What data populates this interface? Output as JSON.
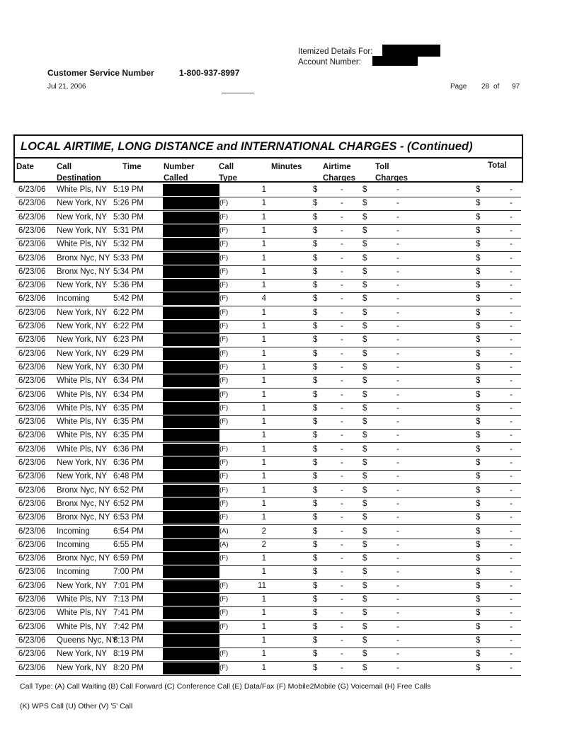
{
  "header": {
    "itemized_label": "Itemized Details For:",
    "account_label": "Account Number:",
    "customer_service_label": "Customer Service Number",
    "customer_service_number": "1-800-937-8997",
    "date": "Jul 21, 2006",
    "page_label": "Page",
    "page_current": "28",
    "page_of": "of",
    "page_total": "97"
  },
  "table": {
    "title": "LOCAL AIRTIME, LONG DISTANCE and INTERNATIONAL CHARGES  - (Continued)",
    "columns": [
      "Date",
      "Call\nDestination",
      "Time",
      "Number\nCalled",
      "Call\nType",
      "Minutes",
      "Airtime\nCharges",
      "Toll\nCharges",
      "Total"
    ],
    "currency": "$",
    "dash": "-",
    "rows": [
      [
        "6/23/06",
        "White Pls, NY",
        "5:19 PM",
        "",
        "1"
      ],
      [
        "6/23/06",
        "New York, NY",
        "5:26 PM",
        "(F)",
        "1"
      ],
      [
        "6/23/06",
        "New York, NY",
        "5:30 PM",
        "(F)",
        "1"
      ],
      [
        "6/23/06",
        "New York, NY",
        "5:31 PM",
        "(F)",
        "1"
      ],
      [
        "6/23/06",
        "White Pls, NY",
        "5:32 PM",
        "(F)",
        "1"
      ],
      [
        "6/23/06",
        "Bronx Nyc, NY",
        "5:33 PM",
        "(F)",
        "1"
      ],
      [
        "6/23/06",
        "Bronx Nyc, NY",
        "5:34 PM",
        "(F)",
        "1"
      ],
      [
        "6/23/06",
        "New York, NY",
        "5:36 PM",
        "(F)",
        "1"
      ],
      [
        "6/23/06",
        "Incoming",
        "5:42 PM",
        "(F)",
        "4"
      ],
      [
        "6/23/06",
        "New York, NY",
        "6:22 PM",
        "(F)",
        "1"
      ],
      [
        "6/23/06",
        "New York, NY",
        "6:22 PM",
        "(F)",
        "1"
      ],
      [
        "6/23/06",
        "New York, NY",
        "6:23 PM",
        "(F)",
        "1"
      ],
      [
        "6/23/06",
        "New York, NY",
        "6:29 PM",
        "(F)",
        "1"
      ],
      [
        "6/23/06",
        "New York, NY",
        "6:30 PM",
        "(F)",
        "1"
      ],
      [
        "6/23/06",
        "White Pls, NY",
        "6:34 PM",
        "(F)",
        "1"
      ],
      [
        "6/23/06",
        "White Pls, NY",
        "6:34 PM",
        "(F)",
        "1"
      ],
      [
        "6/23/06",
        "White Pls, NY",
        "6:35 PM",
        "(F)",
        "1"
      ],
      [
        "6/23/06",
        "White Pls, NY",
        "6:35 PM",
        "(F)",
        "1"
      ],
      [
        "6/23/06",
        "White Pls, NY",
        "6:35 PM",
        "",
        "1"
      ],
      [
        "6/23/06",
        "White Pls, NY",
        "6:36 PM",
        "(F)",
        "1"
      ],
      [
        "6/23/06",
        "New York, NY",
        "6:36 PM",
        "(F)",
        "1"
      ],
      [
        "6/23/06",
        "New York, NY",
        "6:48 PM",
        "(F)",
        "1"
      ],
      [
        "6/23/06",
        "Bronx Nyc, NY",
        "6:52 PM",
        "(F)",
        "1"
      ],
      [
        "6/23/06",
        "Bronx Nyc, NY",
        "6:52 PM",
        "(F)",
        "1"
      ],
      [
        "6/23/06",
        "Bronx Nyc, NY",
        "6:53 PM",
        "(F)",
        "1"
      ],
      [
        "6/23/06",
        "Incoming",
        "6:54 PM",
        "(A)",
        "2"
      ],
      [
        "6/23/06",
        "Incoming",
        "6:55 PM",
        "(A)",
        "2"
      ],
      [
        "6/23/06",
        "Bronx Nyc, NY",
        "6:59 PM",
        "(F)",
        "1"
      ],
      [
        "6/23/06",
        "Incoming",
        "7:00 PM",
        "",
        "1"
      ],
      [
        "6/23/06",
        "New York, NY",
        "7:01 PM",
        "(F)",
        "11"
      ],
      [
        "6/23/06",
        "White Pls, NY",
        "7:13 PM",
        "(F)",
        "1"
      ],
      [
        "6/23/06",
        "White Pls, NY",
        "7:41 PM",
        "(F)",
        "1"
      ],
      [
        "6/23/06",
        "White Pls, NY",
        "7:42 PM",
        "(F)",
        "1"
      ],
      [
        "6/23/06",
        "Queens Nyc, NY",
        "8:13 PM",
        "",
        "1"
      ],
      [
        "6/23/06",
        "New York, NY",
        "8:19 PM",
        "(F)",
        "1"
      ],
      [
        "6/23/06",
        "New York, NY",
        "8:20 PM",
        "(F)",
        "1"
      ]
    ]
  },
  "footer": {
    "legend_line1": "Call Type: (A) Call Waiting (B) Call Forward (C) Conference Call (E) Data/Fax (F) Mobile2Mobile (G) Voicemail (H) Free Calls",
    "legend_line2": "(K) WPS Call (U) Other (V) '5' Call"
  }
}
